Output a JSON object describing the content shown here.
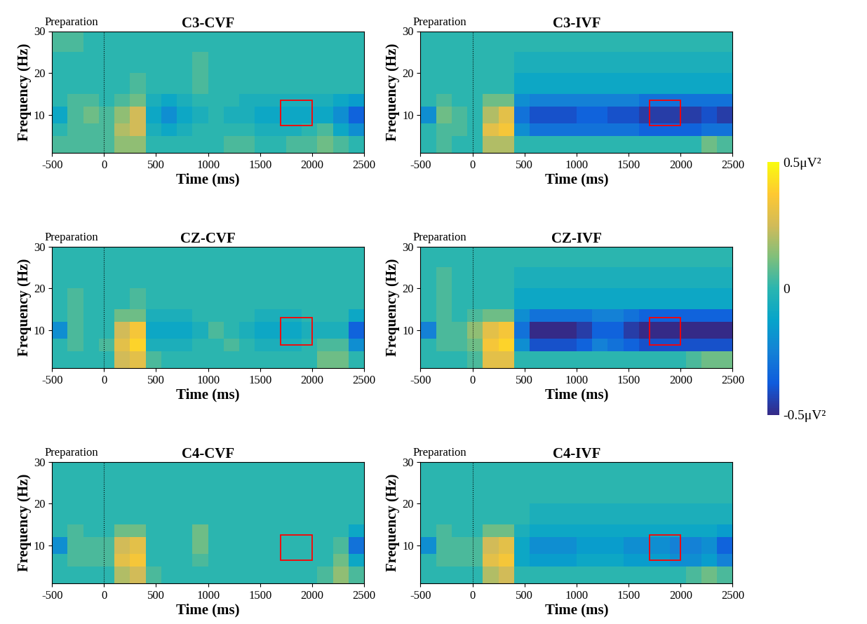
{
  "chart_data": [
    {
      "type": "heatmap",
      "title": "C3-CVF",
      "annotation": "Preparation",
      "x_label": "Time (ms)",
      "y_label": "Frequency (Hz)",
      "xlim": [
        -500,
        2500
      ],
      "xticks": [
        -500,
        0,
        500,
        1000,
        1500,
        2000,
        2500
      ],
      "ylim": [
        1,
        30
      ],
      "yticks": [
        10,
        20,
        30
      ],
      "event_time": 0,
      "box": {
        "time": [
          1700,
          2000
        ],
        "frequency": [
          7.5,
          13.5
        ]
      },
      "time_edges": [
        -500,
        -350,
        -200,
        -50,
        100,
        250,
        400,
        550,
        700,
        850,
        1000,
        1150,
        1300,
        1450,
        1600,
        1750,
        1900,
        2050,
        2200,
        2350,
        2500
      ],
      "freq_edges": [
        1,
        5,
        8,
        12,
        15,
        20,
        25,
        30
      ],
      "cells": [
        [
          0.05,
          0.05,
          0.05,
          0.05,
          0.15,
          0.15,
          0,
          0,
          0,
          0,
          0,
          0.05,
          0.05,
          0,
          0,
          0.05,
          0.05,
          0.1,
          0.05,
          0
        ],
        [
          0,
          0.05,
          0.05,
          0.05,
          0.2,
          0.25,
          -0.05,
          -0.1,
          -0.05,
          0,
          0,
          0,
          0,
          -0.05,
          -0.05,
          -0.05,
          0,
          0.05,
          -0.1,
          -0.2
        ],
        [
          -0.1,
          0.05,
          0.1,
          0.05,
          0.15,
          0.25,
          -0.1,
          -0.2,
          -0.1,
          -0.05,
          0,
          -0.05,
          -0.05,
          -0.1,
          -0.1,
          -0.1,
          -0.1,
          -0.1,
          -0.2,
          -0.35
        ],
        [
          0,
          0.05,
          0.05,
          0,
          0.05,
          0.1,
          -0.05,
          -0.1,
          -0.05,
          0,
          0,
          0,
          -0.05,
          -0.05,
          -0.05,
          -0.05,
          -0.05,
          -0.05,
          -0.1,
          -0.15
        ],
        [
          0,
          0,
          0,
          0,
          0,
          0.05,
          0,
          0,
          0,
          0.05,
          0,
          0,
          0,
          0,
          0,
          0,
          0,
          0,
          0,
          0
        ],
        [
          0,
          0,
          0,
          0,
          0,
          0,
          0,
          0,
          0,
          0.05,
          0,
          0,
          0,
          0,
          0,
          0,
          0,
          0,
          0,
          0
        ],
        [
          0.05,
          0.05,
          0,
          0,
          0,
          0,
          0,
          0,
          0,
          0,
          0,
          0,
          0,
          0,
          0,
          0,
          0,
          0,
          0,
          0
        ]
      ]
    },
    {
      "type": "heatmap",
      "title": "C3-IVF",
      "annotation": "Preparation",
      "x_label": "Time (ms)",
      "y_label": "Frequency (Hz)",
      "xlim": [
        -500,
        2500
      ],
      "xticks": [
        -500,
        0,
        500,
        1000,
        1500,
        2000,
        2500
      ],
      "ylim": [
        1,
        30
      ],
      "yticks": [
        10,
        20,
        30
      ],
      "event_time": 0,
      "box": {
        "time": [
          1700,
          2000
        ],
        "frequency": [
          7.5,
          13.5
        ]
      },
      "time_edges": [
        -500,
        -350,
        -200,
        -50,
        100,
        250,
        400,
        550,
        700,
        850,
        1000,
        1150,
        1300,
        1450,
        1600,
        1750,
        1900,
        2050,
        2200,
        2350,
        2500
      ],
      "freq_edges": [
        1,
        5,
        8,
        12,
        15,
        20,
        25,
        30
      ],
      "cells": [
        [
          0,
          0.05,
          0,
          0,
          0.2,
          0.2,
          0,
          0,
          0,
          0,
          0,
          0,
          0,
          0,
          0,
          0,
          0,
          0,
          0.1,
          0.05
        ],
        [
          0,
          0.05,
          0.05,
          0,
          0.3,
          0.35,
          -0.2,
          -0.3,
          -0.3,
          -0.3,
          -0.3,
          -0.3,
          -0.3,
          -0.3,
          -0.35,
          -0.35,
          -0.35,
          -0.35,
          -0.3,
          -0.3
        ],
        [
          -0.2,
          0.1,
          0.05,
          0,
          0.2,
          0.3,
          -0.3,
          -0.4,
          -0.4,
          -0.4,
          -0.35,
          -0.35,
          -0.4,
          -0.4,
          -0.45,
          -0.45,
          -0.45,
          -0.45,
          -0.4,
          -0.45
        ],
        [
          0,
          0.05,
          0,
          0,
          0.1,
          0.1,
          -0.2,
          -0.25,
          -0.25,
          -0.25,
          -0.25,
          -0.25,
          -0.25,
          -0.25,
          -0.3,
          -0.3,
          -0.3,
          -0.3,
          -0.3,
          -0.3
        ],
        [
          0,
          0,
          0,
          0,
          0,
          0,
          -0.1,
          -0.1,
          -0.1,
          -0.1,
          -0.1,
          -0.1,
          -0.1,
          -0.1,
          -0.1,
          -0.1,
          -0.1,
          -0.1,
          -0.1,
          -0.1
        ],
        [
          0,
          0,
          0,
          0,
          0,
          0,
          -0.05,
          -0.05,
          -0.05,
          -0.05,
          -0.05,
          -0.05,
          -0.05,
          -0.05,
          -0.05,
          -0.05,
          -0.05,
          -0.05,
          -0.05,
          -0.05
        ],
        [
          0,
          0,
          0,
          0,
          0,
          0,
          0,
          0,
          0,
          0,
          0,
          0,
          0,
          0,
          0,
          0,
          0,
          0,
          0,
          0
        ]
      ]
    },
    {
      "type": "heatmap",
      "title": "CZ-CVF",
      "annotation": "Preparation",
      "x_label": "Time (ms)",
      "y_label": "Frequency (Hz)",
      "xlim": [
        -500,
        2500
      ],
      "xticks": [
        -500,
        0,
        500,
        1000,
        1500,
        2000,
        2500
      ],
      "ylim": [
        1,
        30
      ],
      "yticks": [
        10,
        20,
        30
      ],
      "event_time": 0,
      "box": {
        "time": [
          1700,
          2000
        ],
        "frequency": [
          6.5,
          13
        ]
      },
      "time_edges": [
        -500,
        -350,
        -200,
        -50,
        100,
        250,
        400,
        550,
        700,
        850,
        1000,
        1150,
        1300,
        1450,
        1600,
        1750,
        1900,
        2050,
        2200,
        2350,
        2500
      ],
      "freq_edges": [
        1,
        5,
        8,
        12,
        15,
        20,
        25,
        30
      ],
      "cells": [
        [
          0,
          0,
          0,
          0,
          0.25,
          0.3,
          0.05,
          0,
          0,
          0,
          0,
          0,
          0,
          0,
          0,
          0,
          0,
          0.1,
          0.1,
          0
        ],
        [
          0,
          0.05,
          0,
          0.05,
          0.3,
          0.4,
          -0.05,
          -0.05,
          -0.05,
          0,
          0,
          0.05,
          0,
          -0.05,
          -0.05,
          -0.05,
          0,
          0.05,
          0.05,
          -0.2
        ],
        [
          -0.2,
          0.05,
          0,
          0,
          0.25,
          0.35,
          -0.1,
          -0.1,
          -0.1,
          -0.05,
          0.05,
          0,
          -0.05,
          -0.1,
          -0.1,
          -0.1,
          -0.05,
          -0.05,
          -0.05,
          -0.35
        ],
        [
          0,
          0.05,
          0,
          0,
          0.1,
          0.1,
          -0.05,
          -0.05,
          -0.05,
          0,
          0,
          0,
          0,
          -0.05,
          -0.05,
          -0.05,
          0,
          0,
          0,
          -0.1
        ],
        [
          0,
          0.05,
          0,
          0,
          0,
          0.05,
          0,
          0,
          0,
          0,
          0,
          0,
          0,
          0,
          0,
          0,
          0,
          0,
          0,
          0
        ],
        [
          0,
          0,
          0,
          0,
          0,
          0,
          0,
          0,
          0,
          0,
          0,
          0,
          0,
          0,
          0,
          0,
          0,
          0,
          0,
          0
        ],
        [
          0,
          0,
          0,
          0,
          0,
          0,
          0,
          0,
          0,
          0,
          0,
          0,
          0,
          0,
          0,
          0,
          0,
          0,
          0,
          0
        ]
      ]
    },
    {
      "type": "heatmap",
      "title": "CZ-IVF",
      "annotation": "Preparation",
      "x_label": "Time (ms)",
      "y_label": "Frequency (Hz)",
      "xlim": [
        -500,
        2500
      ],
      "xticks": [
        -500,
        0,
        500,
        1000,
        1500,
        2000,
        2500
      ],
      "ylim": [
        1,
        30
      ],
      "yticks": [
        10,
        20,
        30
      ],
      "event_time": 0,
      "box": {
        "time": [
          1700,
          2000
        ],
        "frequency": [
          6.5,
          13
        ]
      },
      "time_edges": [
        -500,
        -350,
        -200,
        -50,
        100,
        250,
        400,
        550,
        700,
        850,
        1000,
        1150,
        1300,
        1450,
        1600,
        1750,
        1900,
        2050,
        2200,
        2350,
        2500
      ],
      "freq_edges": [
        1,
        5,
        8,
        12,
        15,
        20,
        25,
        30
      ],
      "cells": [
        [
          0,
          0,
          0,
          0.05,
          0.3,
          0.3,
          0,
          0,
          0,
          0,
          0,
          0,
          0,
          0,
          0,
          0,
          0,
          0.05,
          0.1,
          0.1
        ],
        [
          0,
          0.05,
          0.05,
          0.1,
          0.35,
          0.4,
          -0.2,
          -0.4,
          -0.4,
          -0.4,
          -0.35,
          -0.25,
          -0.3,
          -0.35,
          -0.4,
          -0.4,
          -0.4,
          -0.4,
          -0.4,
          -0.4
        ],
        [
          -0.25,
          0.05,
          0.05,
          0.15,
          0.3,
          0.35,
          -0.3,
          -0.5,
          -0.5,
          -0.5,
          -0.45,
          -0.35,
          -0.35,
          -0.45,
          -0.5,
          -0.5,
          -0.5,
          -0.5,
          -0.5,
          -0.5
        ],
        [
          0,
          0.05,
          0,
          0.05,
          0.1,
          0.1,
          -0.2,
          -0.3,
          -0.3,
          -0.3,
          -0.3,
          -0.25,
          -0.25,
          -0.3,
          -0.35,
          -0.35,
          -0.35,
          -0.35,
          -0.35,
          -0.35
        ],
        [
          0,
          0.05,
          0,
          0,
          0,
          0,
          -0.1,
          -0.1,
          -0.1,
          -0.1,
          -0.1,
          -0.1,
          -0.1,
          -0.1,
          -0.1,
          -0.1,
          -0.1,
          -0.1,
          -0.1,
          -0.1
        ],
        [
          0,
          0.05,
          0,
          0,
          0,
          0,
          -0.05,
          -0.05,
          -0.05,
          -0.05,
          -0.05,
          -0.05,
          -0.05,
          -0.05,
          -0.05,
          -0.05,
          -0.05,
          -0.05,
          -0.05,
          -0.05
        ],
        [
          0,
          0,
          0,
          0,
          0,
          0,
          0,
          0,
          0,
          0,
          0,
          0,
          0,
          0,
          0,
          0,
          0,
          0,
          0,
          0
        ]
      ]
    },
    {
      "type": "heatmap",
      "title": "C4-CVF",
      "annotation": "Preparation",
      "x_label": "Time (ms)",
      "y_label": "Frequency (Hz)",
      "xlim": [
        -500,
        2500
      ],
      "xticks": [
        -500,
        0,
        500,
        1000,
        1500,
        2000,
        2500
      ],
      "ylim": [
        1,
        30
      ],
      "yticks": [
        10,
        20,
        30
      ],
      "event_time": 0,
      "box": {
        "time": [
          1700,
          2000
        ],
        "frequency": [
          6.5,
          12.5
        ]
      },
      "time_edges": [
        -500,
        -350,
        -200,
        -50,
        100,
        250,
        400,
        550,
        700,
        850,
        1000,
        1150,
        1300,
        1450,
        1600,
        1750,
        1900,
        2050,
        2200,
        2350,
        2500
      ],
      "freq_edges": [
        1,
        5,
        8,
        12,
        15,
        20,
        25,
        30
      ],
      "cells": [
        [
          0,
          0,
          0,
          0,
          0.2,
          0.25,
          0.05,
          0,
          0,
          0,
          0,
          0,
          0,
          0,
          0,
          0,
          0,
          0.05,
          0.15,
          0.05
        ],
        [
          0,
          0.05,
          0.05,
          0.05,
          0.3,
          0.35,
          0,
          0,
          0,
          0.05,
          0,
          0,
          0,
          0,
          0,
          0,
          0,
          0,
          0.1,
          -0.1
        ],
        [
          -0.2,
          0.05,
          0.05,
          0.05,
          0.25,
          0.3,
          0,
          0,
          0,
          0.1,
          0,
          0,
          0,
          0,
          0,
          0,
          0,
          0,
          0.05,
          -0.3
        ],
        [
          0,
          0.05,
          0,
          0,
          0.1,
          0.1,
          0,
          0,
          0,
          0.1,
          0,
          0,
          0,
          0,
          0,
          0,
          0,
          0,
          0,
          -0.1
        ],
        [
          0,
          0,
          0,
          0,
          0,
          0,
          0,
          0,
          0,
          0,
          0,
          0,
          0,
          0,
          0,
          0,
          0,
          0,
          0,
          0
        ],
        [
          0,
          0,
          0,
          0,
          0,
          0,
          0,
          0,
          0,
          0,
          0,
          0,
          0,
          0,
          0,
          0,
          0,
          0,
          0,
          0
        ],
        [
          0,
          0,
          0,
          0,
          0,
          0,
          0,
          0,
          0,
          0,
          0,
          0,
          0,
          0,
          0,
          0,
          0,
          0,
          0,
          0
        ]
      ]
    },
    {
      "type": "heatmap",
      "title": "C4-IVF",
      "annotation": "Preparation",
      "x_label": "Time (ms)",
      "y_label": "Frequency (Hz)",
      "xlim": [
        -500,
        2500
      ],
      "xticks": [
        -500,
        0,
        500,
        1000,
        1500,
        2000,
        2500
      ],
      "ylim": [
        1,
        30
      ],
      "yticks": [
        10,
        20,
        30
      ],
      "event_time": 0,
      "box": {
        "time": [
          1700,
          2000
        ],
        "frequency": [
          6.5,
          12.5
        ]
      },
      "time_edges": [
        -500,
        -350,
        -200,
        -50,
        100,
        250,
        400,
        550,
        700,
        850,
        1000,
        1150,
        1300,
        1450,
        1600,
        1750,
        1900,
        2050,
        2200,
        2350,
        2500
      ],
      "freq_edges": [
        1,
        5,
        8,
        12,
        15,
        20,
        25,
        30
      ],
      "cells": [
        [
          0,
          0,
          0,
          0,
          0.2,
          0.25,
          0,
          0,
          0,
          0,
          0,
          0,
          0,
          0,
          0,
          0,
          0,
          0.05,
          0.1,
          0.05
        ],
        [
          0,
          0.05,
          0.05,
          0.05,
          0.3,
          0.35,
          -0.1,
          -0.15,
          -0.15,
          -0.15,
          -0.1,
          -0.1,
          -0.1,
          -0.15,
          -0.15,
          -0.15,
          -0.2,
          -0.2,
          -0.15,
          -0.25
        ],
        [
          -0.2,
          0.05,
          0.05,
          0.05,
          0.25,
          0.3,
          -0.1,
          -0.2,
          -0.2,
          -0.2,
          -0.15,
          -0.15,
          -0.15,
          -0.2,
          -0.2,
          -0.2,
          -0.25,
          -0.25,
          -0.2,
          -0.35
        ],
        [
          0,
          0.05,
          0,
          0,
          0.1,
          0.1,
          -0.05,
          -0.1,
          -0.1,
          -0.1,
          -0.1,
          -0.1,
          -0.1,
          -0.1,
          -0.1,
          -0.1,
          -0.1,
          -0.1,
          -0.1,
          -0.15
        ],
        [
          0,
          0,
          0,
          0,
          0,
          0,
          0,
          -0.05,
          -0.05,
          -0.05,
          -0.05,
          -0.05,
          -0.05,
          -0.05,
          -0.05,
          -0.05,
          -0.05,
          -0.05,
          -0.05,
          -0.05
        ],
        [
          0,
          0,
          0,
          0,
          0,
          0,
          0,
          0,
          0,
          0,
          0,
          0,
          0,
          0,
          0,
          0,
          0,
          0,
          0,
          0
        ],
        [
          0,
          0,
          0,
          0,
          0,
          0,
          0,
          0,
          0,
          0,
          0,
          0,
          0,
          0,
          0,
          0,
          0,
          0,
          0,
          0
        ]
      ]
    }
  ],
  "colorbar": {
    "range": [
      -0.5,
      0.5
    ],
    "ticks": [
      {
        "value": 0.5,
        "label": "0.5μV²"
      },
      {
        "value": 0,
        "label": "0"
      },
      {
        "value": -0.5,
        "label": "-0.5μV²"
      }
    ]
  }
}
